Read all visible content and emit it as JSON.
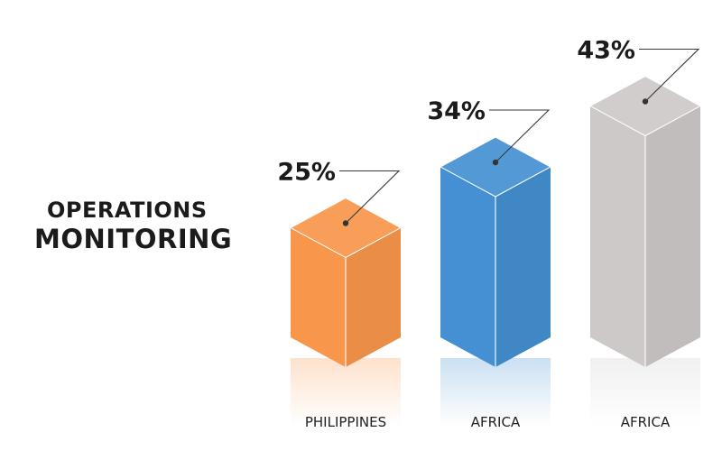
{
  "title_lines": [
    "OPERATIONS",
    "MONITORING"
  ],
  "chart_data": {
    "type": "bar",
    "categories": [
      "PHILIPPINES",
      "AFRICA",
      "AFRICA"
    ],
    "values": [
      25,
      34,
      43
    ],
    "data_labels": [
      "25%",
      "34%",
      "43%"
    ],
    "unit": "%",
    "colors": [
      "#F8964B",
      "#4490D2",
      "#CDC9C9"
    ],
    "legend": "none",
    "grid": false
  }
}
